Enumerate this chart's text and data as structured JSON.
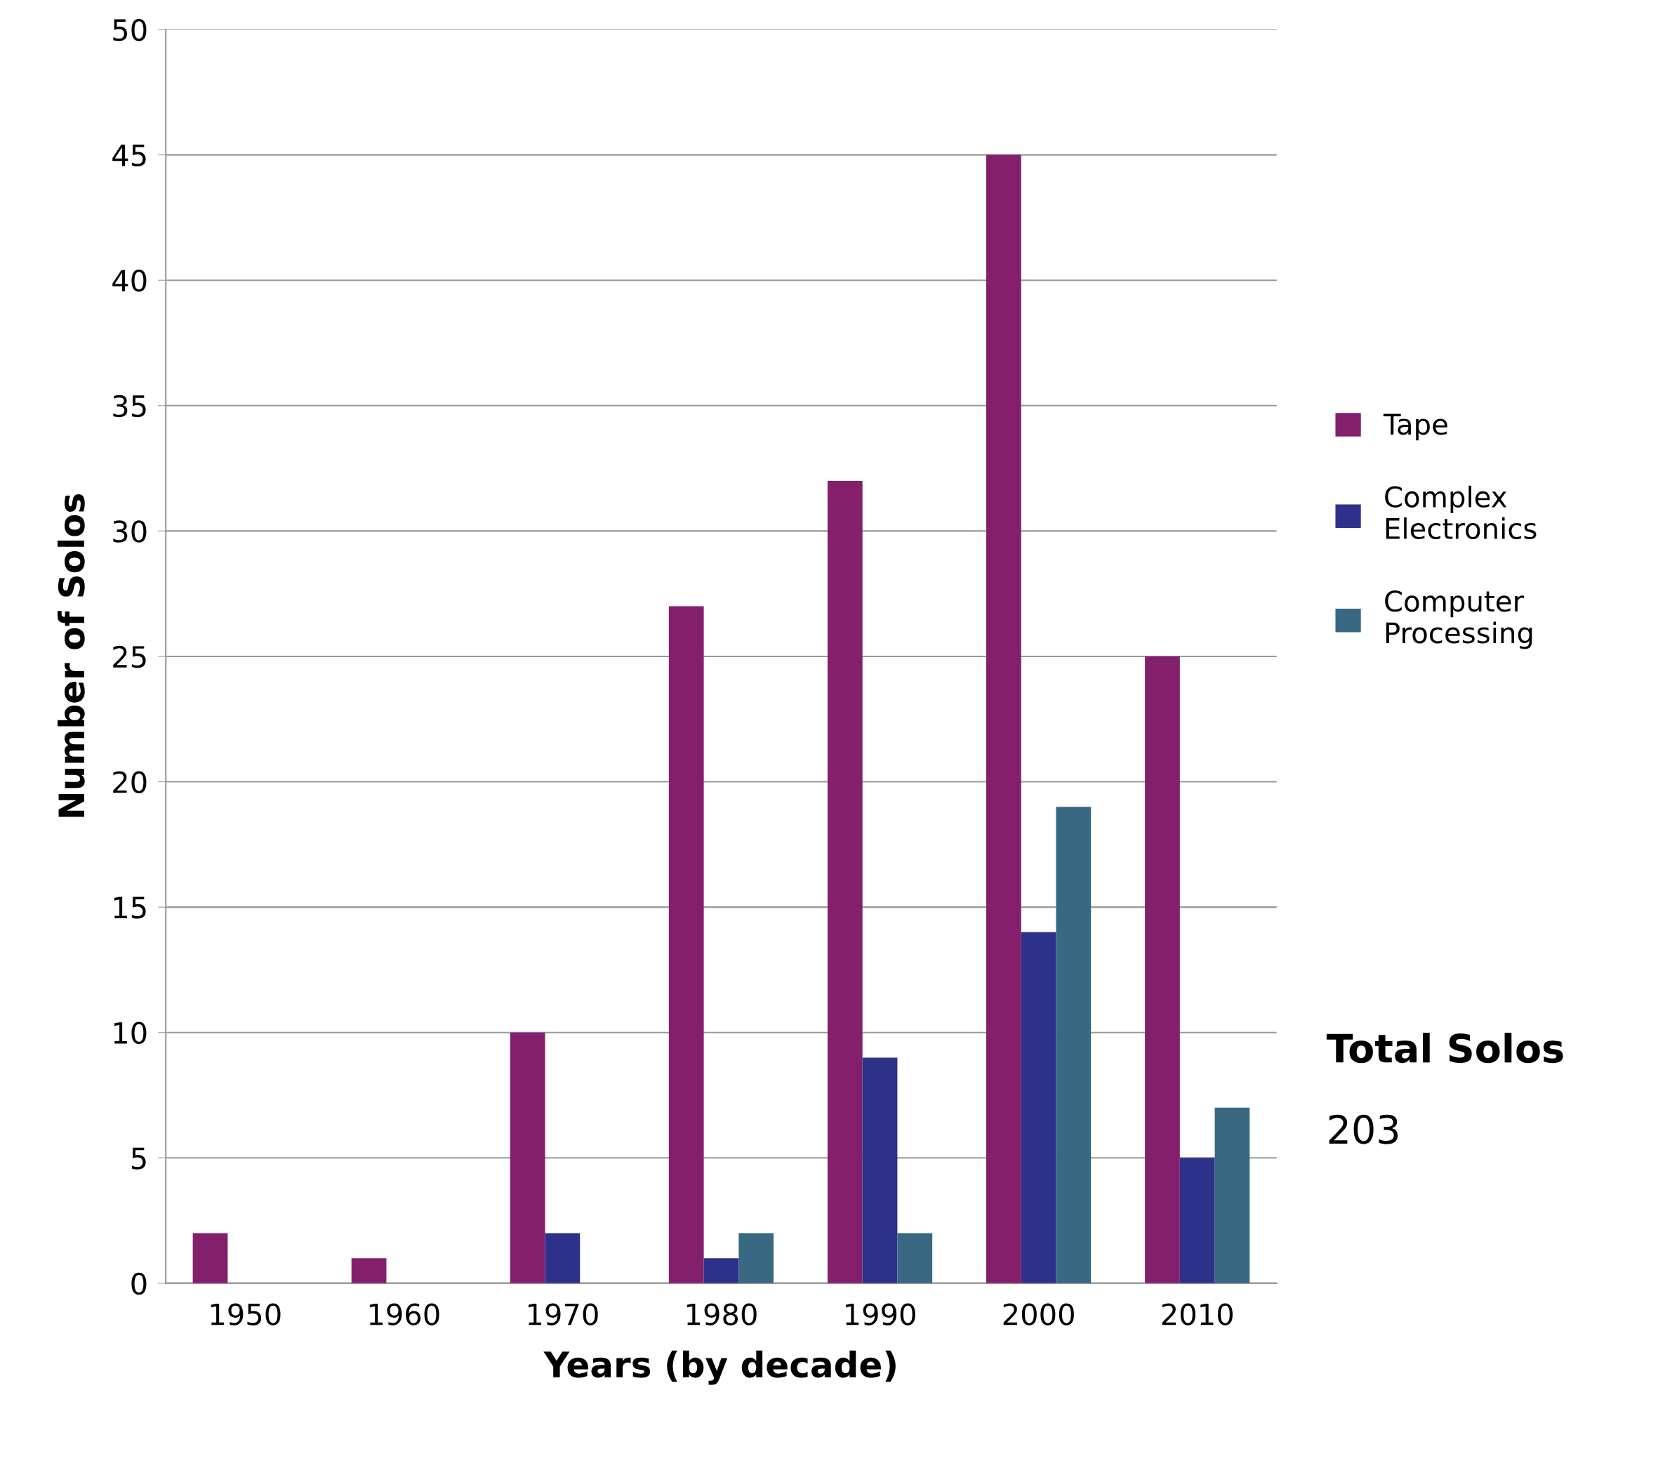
{
  "chart_data": {
    "type": "bar",
    "xlabel": "Years (by decade)",
    "ylabel": "Number of Solos",
    "categories": [
      "1950",
      "1960",
      "1970",
      "1980",
      "1990",
      "2000",
      "2010"
    ],
    "series": [
      {
        "name": "Tape",
        "color": "#841f6c",
        "values": [
          2,
          1,
          10,
          27,
          32,
          45,
          25
        ]
      },
      {
        "name": "Complex\nElectronics",
        "color": "#2e3189",
        "values": [
          0,
          0,
          2,
          1,
          9,
          14,
          5
        ]
      },
      {
        "name": "Computer\nProcessing",
        "color": "#386882",
        "values": [
          0,
          0,
          0,
          2,
          2,
          19,
          7
        ]
      }
    ],
    "ylim": [
      0,
      50
    ],
    "yticks": [
      0,
      5,
      10,
      15,
      20,
      25,
      30,
      35,
      40,
      45,
      50
    ],
    "grid": "y",
    "legend": "right",
    "annotations": [
      "Total Solos",
      "203"
    ]
  }
}
